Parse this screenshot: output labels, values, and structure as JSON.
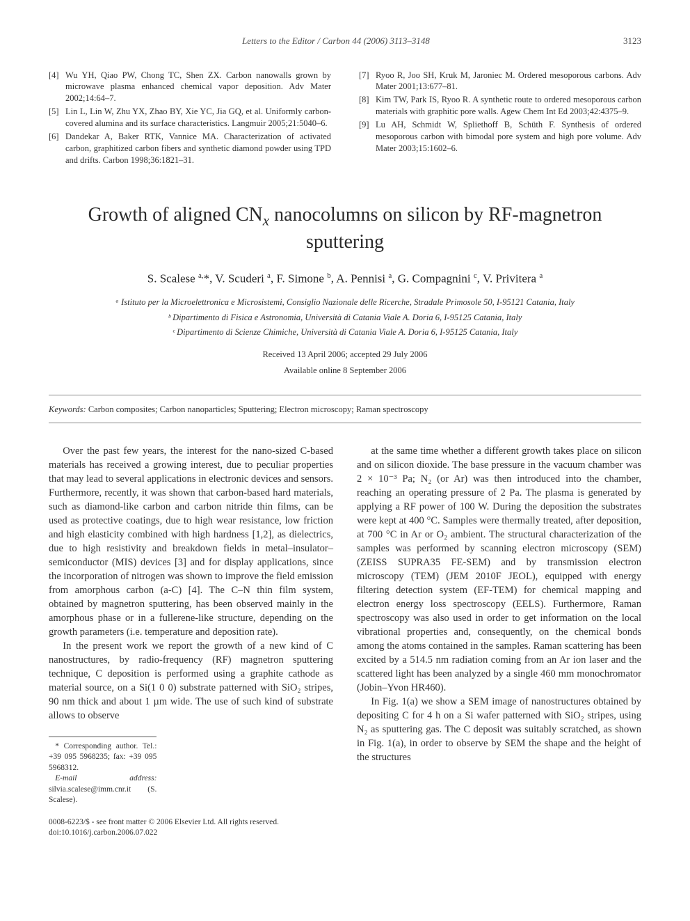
{
  "header": {
    "journal": "Letters to the Editor / Carbon 44 (2006) 3113–3148",
    "page_number": "3123"
  },
  "references_left": [
    {
      "num": "[4]",
      "text": "Wu YH, Qiao PW, Chong TC, Shen ZX. Carbon nanowalls grown by microwave plasma enhanced chemical vapor deposition. Adv Mater 2002;14:64–7."
    },
    {
      "num": "[5]",
      "text": "Lin L, Lin W, Zhu YX, Zhao BY, Xie YC, Jia GQ, et al. Uniformly carbon-covered alumina and its surface characteristics. Langmuir 2005;21:5040–6."
    },
    {
      "num": "[6]",
      "text": "Dandekar A, Baker RTK, Vannice MA. Characterization of activated carbon, graphitized carbon fibers and synthetic diamond powder using TPD and drifts. Carbon 1998;36:1821–31."
    }
  ],
  "references_right": [
    {
      "num": "[7]",
      "text": "Ryoo R, Joo SH, Kruk M, Jaroniec M. Ordered mesoporous carbons. Adv Mater 2001;13:677–81."
    },
    {
      "num": "[8]",
      "text": "Kim TW, Park IS, Ryoo R. A synthetic route to ordered mesoporous carbon materials with graphitic pore walls. Agew Chem Int Ed 2003;42:4375–9."
    },
    {
      "num": "[9]",
      "text": "Lu AH, Schmidt W, Spliethoff B, Schüth F. Synthesis of ordered mesoporous carbon with bimodal pore system and high pore volume. Adv Mater 2003;15:1602–6."
    }
  ],
  "article": {
    "title_line1": "Growth of aligned CN",
    "title_sub": "x",
    "title_line2": " nanocolumns on silicon by RF-magnetron sputtering",
    "authors_html": "S. Scalese <sup>a,</sup>*, V. Scuderi <sup>a</sup>, F. Simone <sup>b</sup>, A. Pennisi <sup>a</sup>, G. Compagnini <sup>c</sup>, V. Privitera <sup>a</sup>",
    "affiliations": [
      "ᵃ Istituto per la Microelettronica e Microsistemi, Consiglio Nazionale delle Ricerche, Stradale Primosole 50, I-95121 Catania, Italy",
      "ᵇ Dipartimento di Fisica e Astronomia, Università di Catania Viale A. Doria 6, I-95125 Catania, Italy",
      "ᶜ Dipartimento di Scienze Chimiche, Università di Catania Viale A. Doria 6, I-95125 Catania, Italy"
    ],
    "received": "Received 13 April 2006; accepted 29 July 2006",
    "available": "Available online 8 September 2006",
    "keywords_label": "Keywords:",
    "keywords": " Carbon composites; Carbon nanoparticles; Sputtering; Electron microscopy; Raman spectroscopy"
  },
  "body": {
    "col1": [
      "Over the past few years, the interest for the nano-sized C-based materials has received a growing interest, due to peculiar properties that may lead to several applications in electronic devices and sensors. Furthermore, recently, it was shown that carbon-based hard materials, such as diamond-like carbon and carbon nitride thin films, can be used as protective coatings, due to high wear resistance, low friction and high elasticity combined with high hardness [1,2], as dielectrics, due to high resistivity and breakdown fields in metal–insulator–semiconductor (MIS) devices [3] and for display applications, since the incorporation of nitrogen was shown to improve the field emission from amorphous carbon (a-C) [4]. The C–N thin film system, obtained by magnetron sputtering, has been observed mainly in the amorphous phase or in a fullerene-like structure, depending on the growth parameters (i.e. temperature and deposition rate).",
      "In the present work we report the growth of a new kind of C nanostructures, by radio-frequency (RF) magnetron sputtering technique, C deposition is performed using a graphite cathode as material source, on a Si(1 0 0) substrate patterned with SiO₂ stripes, 90 nm thick and about 1 µm wide. The use of such kind of substrate allows to observe"
    ],
    "col2": [
      "at the same time whether a different growth takes place on silicon and on silicon dioxide. The base pressure in the vacuum chamber was 2 × 10⁻³ Pa; N₂ (or Ar) was then introduced into the chamber, reaching an operating pressure of 2 Pa. The plasma is generated by applying a RF power of 100 W. During the deposition the substrates were kept at 400 °C. Samples were thermally treated, after deposition, at 700 °C in Ar or O₂ ambient. The structural characterization of the samples was performed by scanning electron microscopy (SEM) (ZEISS SUPRA35 FE-SEM) and by transmission electron microscopy (TEM) (JEM 2010F JEOL), equipped with energy filtering detection system (EF-TEM) for chemical mapping and electron energy loss spectroscopy (EELS). Furthermore, Raman spectroscopy was also used in order to get information on the local vibrational properties and, consequently, on the chemical bonds among the atoms contained in the samples. Raman scattering has been excited by a 514.5 nm radiation coming from an Ar ion laser and the scattered light has been analyzed by a single 460 mm monochromator (Jobin–Yvon HR460).",
      "In Fig. 1(a) we show a SEM image of nanostructures obtained by depositing C for 4 h on a Si wafer patterned with SiO₂ stripes, using N₂ as sputtering gas. The C deposit was suitably scratched, as shown in Fig. 1(a), in order to observe by SEM the shape and the height of the structures"
    ]
  },
  "footnotes": {
    "corresponding": "* Corresponding author. Tel.: +39 095 5968235; fax: +39 095 5968312.",
    "email_label": "E-mail address:",
    "email": " silvia.scalese@imm.cnr.it (S. Scalese)."
  },
  "copyright": {
    "line1": "0008-6223/$ - see front matter © 2006 Elsevier Ltd. All rights reserved.",
    "line2": "doi:10.1016/j.carbon.2006.07.022"
  }
}
